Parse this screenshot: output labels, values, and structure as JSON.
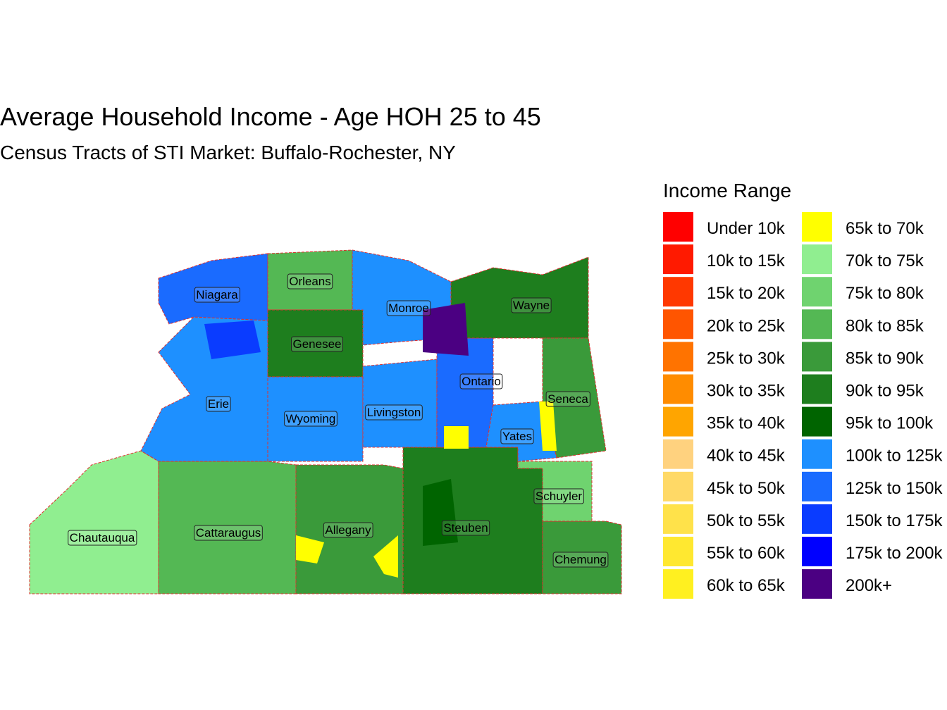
{
  "title": "Average Household Income - Age HOH 25 to 45",
  "subtitle": "Census Tracts of STI Market: Buffalo-Rochester, NY",
  "legend": {
    "title": "Income Range",
    "items": [
      {
        "label": "Under 10k",
        "color": "#ff0000"
      },
      {
        "label": "10k to 15k",
        "color": "#ff1a00"
      },
      {
        "label": "15k to 20k",
        "color": "#ff3800"
      },
      {
        "label": "20k to 25k",
        "color": "#ff5500"
      },
      {
        "label": "25k to 30k",
        "color": "#ff7300"
      },
      {
        "label": "30k to 35k",
        "color": "#ff8c00"
      },
      {
        "label": "35k to 40k",
        "color": "#ffa500"
      },
      {
        "label": "40k to 45k",
        "color": "#ffd27f"
      },
      {
        "label": "45k to 50k",
        "color": "#ffd966"
      },
      {
        "label": "50k to 55k",
        "color": "#ffe24a"
      },
      {
        "label": "55k to 60k",
        "color": "#ffe830"
      },
      {
        "label": "60k to 65k",
        "color": "#fff020"
      },
      {
        "label": "65k to 70k",
        "color": "#ffff00"
      },
      {
        "label": "70k to 75k",
        "color": "#90ee90"
      },
      {
        "label": "75k to 80k",
        "color": "#6fd36f"
      },
      {
        "label": "80k to 85k",
        "color": "#54b854"
      },
      {
        "label": "85k to 90k",
        "color": "#3a9a3a"
      },
      {
        "label": "90k to 95k",
        "color": "#1e7e1e"
      },
      {
        "label": "95k to 100k",
        "color": "#006400"
      },
      {
        "label": "100k to 125k",
        "color": "#1e90ff"
      },
      {
        "label": "125k to 150k",
        "color": "#1a6bff"
      },
      {
        "label": "150k to 175k",
        "color": "#0a3cff"
      },
      {
        "label": "175k to 200k",
        "color": "#0000ff"
      },
      {
        "label": "200k+",
        "color": "#4b0082"
      }
    ]
  },
  "counties": [
    "Niagara",
    "Orleans",
    "Monroe",
    "Wayne",
    "Genesee",
    "Ontario",
    "Seneca",
    "Erie",
    "Wyoming",
    "Livingston",
    "Yates",
    "Schuyler",
    "Chautauqua",
    "Cattaraugus",
    "Allegany",
    "Steuben",
    "Chemung"
  ]
}
